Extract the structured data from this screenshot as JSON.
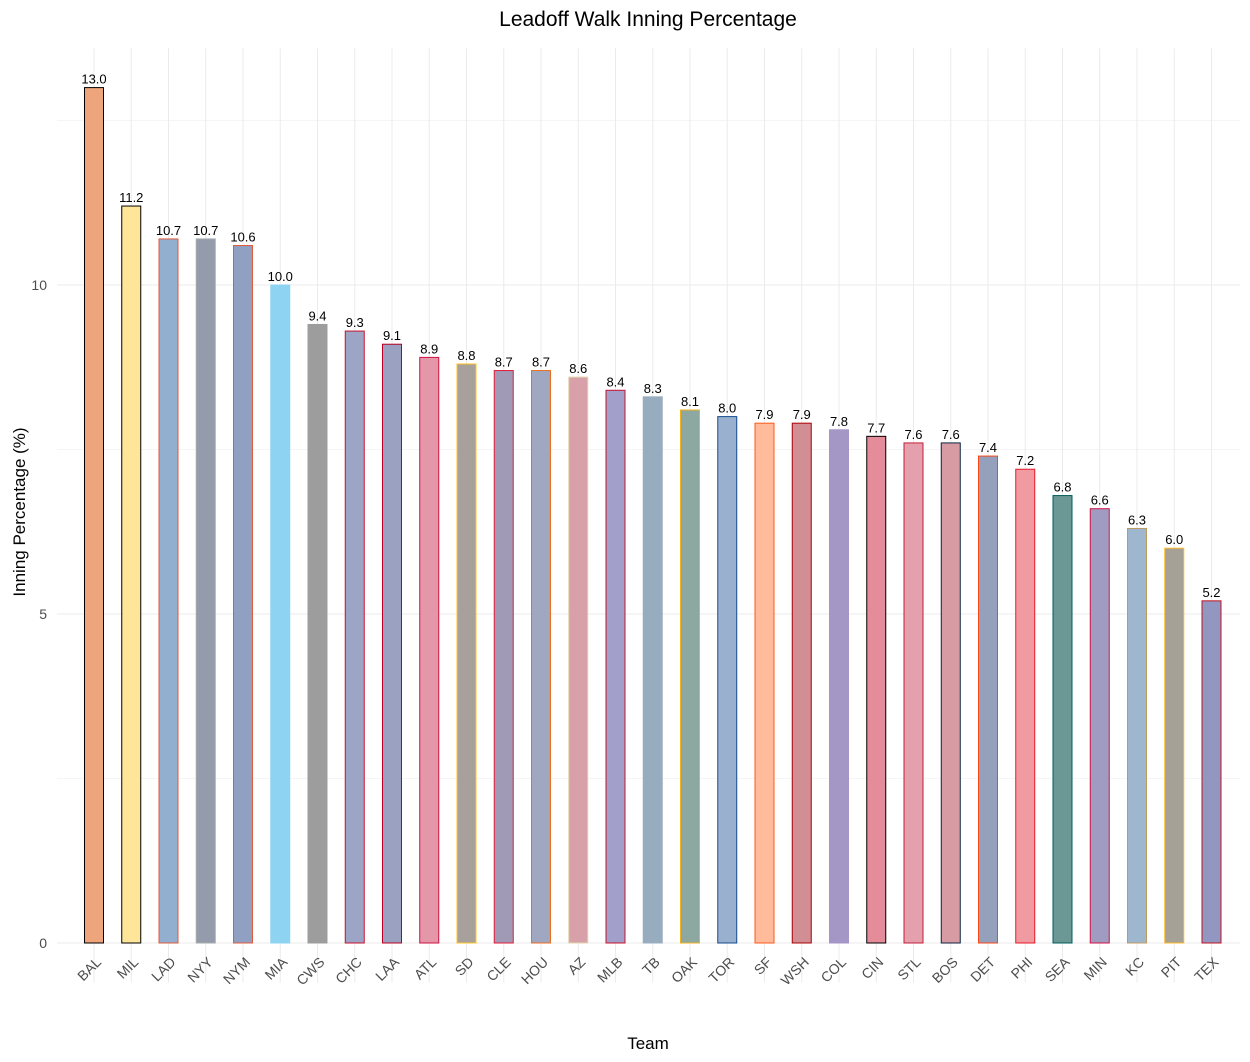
{
  "chart_data": {
    "type": "bar",
    "title": "Leadoff Walk Inning Percentage",
    "xlabel": "Team",
    "ylabel": "Inning Percentage (%)",
    "ylim": [
      -0.6,
      13.6
    ],
    "yticks": [
      0,
      5,
      10
    ],
    "grid": true,
    "categories": [
      "BAL",
      "MIL",
      "LAD",
      "NYY",
      "NYM",
      "MIA",
      "CWS",
      "CHC",
      "LAA",
      "ATL",
      "SD",
      "CLE",
      "HOU",
      "AZ",
      "MLB",
      "TB",
      "OAK",
      "TOR",
      "SF",
      "WSH",
      "COL",
      "CIN",
      "STL",
      "BOS",
      "DET",
      "PHI",
      "SEA",
      "MIN",
      "KC",
      "PIT",
      "TEX"
    ],
    "values": [
      13.0,
      11.2,
      10.7,
      10.7,
      10.6,
      10.0,
      9.4,
      9.3,
      9.1,
      8.9,
      8.8,
      8.7,
      8.7,
      8.6,
      8.4,
      8.3,
      8.1,
      8.0,
      7.9,
      7.9,
      7.8,
      7.7,
      7.6,
      7.6,
      7.4,
      7.2,
      6.8,
      6.6,
      6.3,
      6.0,
      5.2
    ],
    "labels": [
      "13.0",
      "11.2",
      "10.7",
      "10.7",
      "10.6",
      "10.0",
      "9.4",
      "9.3",
      "9.1",
      "8.9",
      "8.8",
      "8.7",
      "8.7",
      "8.6",
      "8.4",
      "8.3",
      "8.1",
      "8.0",
      "7.9",
      "7.9",
      "7.8",
      "7.7",
      "7.6",
      "7.6",
      "7.4",
      "7.2",
      "6.8",
      "6.6",
      "6.3",
      "6.0",
      "5.2"
    ],
    "fill_colors": [
      "#EFA57C",
      "#FFE599",
      "#92AFD0",
      "#949BAA",
      "#90A0C2",
      "#8ED3F1",
      "#9D9D9D",
      "#9DA5C7",
      "#9AA1C1",
      "#E597AA",
      "#A8A09A",
      "#A09AB7",
      "#A0A7C1",
      "#D8A0A8",
      "#A2A0CA",
      "#98ACC0",
      "#8DA7A1",
      "#9AB0CF",
      "#FFBB9A",
      "#D18E95",
      "#A496C5",
      "#E58C9A",
      "#E4A0AD",
      "#D79CA3",
      "#94A0BC",
      "#F09AA2",
      "#6B9795",
      "#A09BC1",
      "#9FB6CF",
      "#A6A197",
      "#9297C1"
    ],
    "outline_colors": [
      "#000000",
      "#000000",
      "#E05A3A",
      "#A4A9AD",
      "#E05A3A",
      "#8ED3F1",
      "#9D9D9D",
      "#C8102E",
      "#BA0021",
      "#CE1141",
      "#FFC425",
      "#E31937",
      "#EB6E1F",
      "#E3D4AD",
      "#C8102E",
      "#98ACC0",
      "#EFB21E",
      "#134A8E",
      "#FD5A1E",
      "#AB0003",
      "#A496C5",
      "#000000",
      "#C41E3A",
      "#0C2340",
      "#FA4616",
      "#E81828",
      "#005C5C",
      "#D31145",
      "#BD9B60",
      "#FDB827",
      "#C0111F"
    ]
  }
}
